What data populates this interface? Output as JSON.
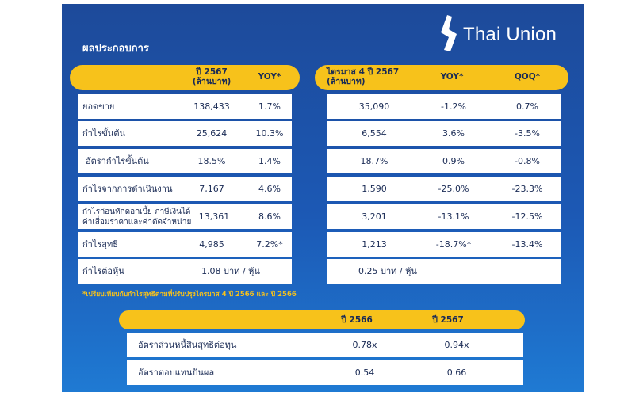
{
  "brand": {
    "name": "Thai Union",
    "colors": {
      "accent": "#f7c21b",
      "background": "#1c59b5",
      "text": "#1a2b55"
    }
  },
  "section_title": "ผลประกอบการ",
  "annual": {
    "headers": {
      "year": "ปี 2567",
      "unit": "(ล้านบาท)",
      "yoy": "YOY*"
    },
    "rows": [
      {
        "label": "ยอดขาย",
        "value": "138,433",
        "yoy": "1.7%"
      },
      {
        "label": "กำไรขั้นต้น",
        "value": "25,624",
        "yoy": "10.3%"
      },
      {
        "label": "อัตรากำไรขั้นต้น",
        "value": "18.5%",
        "yoy": "1.4%"
      },
      {
        "label": "กำไรจากการดำเนินงาน",
        "value": "7,167",
        "yoy": "4.6%"
      },
      {
        "label_line1": "กำไรก่อนหักดอกเบี้ย ภาษีเงินได้",
        "label_line2": "ค่าเสื่อมราคาและค่าตัดจำหน่าย",
        "value": "13,361",
        "yoy": "8.6%"
      },
      {
        "label": "กำไรสุทธิ",
        "value": "4,985",
        "yoy": "7.2%*"
      },
      {
        "label": "กำไรต่อหุ้น",
        "value": "1.08 บาท / หุ้น"
      }
    ]
  },
  "quarterly": {
    "headers": {
      "title": "ไตรมาส 4 ปี 2567",
      "unit": "(ล้านบาท)",
      "yoy": "YOY*",
      "qoq": "QOQ*"
    },
    "rows": [
      {
        "value": "35,090",
        "yoy": "-1.2%",
        "qoq": "0.7%"
      },
      {
        "value": "6,554",
        "yoy": "3.6%",
        "qoq": "-3.5%"
      },
      {
        "value": "18.7%",
        "yoy": "0.9%",
        "qoq": "-0.8%"
      },
      {
        "value": "1,590",
        "yoy": "-25.0%",
        "qoq": "-23.3%"
      },
      {
        "value": "3,201",
        "yoy": "-13.1%",
        "qoq": "-12.5%"
      },
      {
        "value": "1,213",
        "yoy": "-18.7%*",
        "qoq": "-13.4%"
      },
      {
        "value": "0.25 บาท / หุ้น"
      }
    ]
  },
  "footnote": "*เปรียบเทียบกับกำไรสุทธิตามที่ปรับปรุงไตรมาส 4 ปี 2566 และ ปี 2566",
  "ratios": {
    "headers": {
      "y2566": "ปี 2566",
      "y2567": "ปี 2567"
    },
    "rows": [
      {
        "label": "อัตราส่วนหนี้สินสุทธิต่อทุน",
        "y2566": "0.78x",
        "y2567": "0.94x"
      },
      {
        "label": "อัตราตอบแทนปันผล",
        "y2566": "0.54",
        "y2567": "0.66"
      }
    ]
  }
}
